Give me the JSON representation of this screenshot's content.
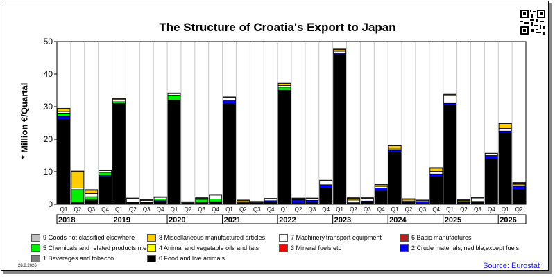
{
  "chart_data": {
    "type": "bar",
    "stacked": true,
    "title": "The Structure of Croatia's Export to Japan",
    "ylabel": "* Million €/Quartal",
    "ylim": [
      0,
      50
    ],
    "yticks": [
      0,
      10,
      20,
      30,
      40,
      50
    ],
    "categories": [
      "Q1",
      "Q2",
      "Q3",
      "Q4",
      "Q1",
      "Q2",
      "Q3",
      "Q4",
      "Q1",
      "Q2",
      "Q3",
      "Q4",
      "Q1",
      "Q2",
      "Q3",
      "Q4",
      "Q1",
      "Q2",
      "Q3",
      "Q4",
      "Q1",
      "Q2",
      "Q3",
      "Q4",
      "Q1",
      "Q2",
      "Q3",
      "Q4",
      "Q1",
      "Q2",
      "Q3",
      "Q4",
      "Q1",
      "Q2"
    ],
    "years": [
      "2018",
      "2019",
      "2020",
      "2021",
      "2022",
      "2023",
      "2024",
      "2025",
      "2026"
    ],
    "series": [
      {
        "name": "0 Food and live animals",
        "color": "#000000",
        "values": [
          26,
          0.5,
          1,
          8.5,
          31,
          0.6,
          0.6,
          0.8,
          32,
          0.3,
          0.4,
          0.6,
          31,
          0.3,
          0.4,
          0.6,
          35,
          0.4,
          0.5,
          5,
          46,
          0.4,
          0.6,
          4,
          16,
          0.5,
          0.3,
          8.5,
          30.5,
          0.4,
          0.6,
          14,
          22,
          4.5
        ]
      },
      {
        "name": "1 Beverages and tobacco",
        "color": "#808080",
        "values": [
          0,
          0,
          0,
          0,
          0,
          0,
          0,
          0,
          0,
          0,
          0,
          0,
          0,
          0,
          0,
          0,
          0,
          0,
          0,
          0,
          0,
          0,
          0,
          0,
          0,
          0,
          0,
          0,
          0,
          0,
          0,
          0,
          0,
          0
        ]
      },
      {
        "name": "2 Crude materials,inedible,except fuels",
        "color": "#0000ff",
        "values": [
          1,
          0,
          0.3,
          0.3,
          0,
          0.1,
          0.1,
          0.3,
          0,
          0.1,
          0.1,
          0.2,
          0.8,
          0.1,
          0.1,
          0.5,
          0,
          1,
          0.7,
          1,
          0.5,
          0.1,
          0.4,
          1,
          0.5,
          0.2,
          0.5,
          0.8,
          0.5,
          0.2,
          0.3,
          1,
          0.5,
          1
        ]
      },
      {
        "name": "3 Mineral fuels etc",
        "color": "#ff0000",
        "values": [
          0,
          0,
          0,
          0,
          0,
          0,
          0,
          0,
          0,
          0,
          0,
          0,
          0,
          0,
          0,
          0,
          0,
          0,
          0,
          0,
          0,
          0,
          0,
          0,
          0,
          0,
          0,
          0,
          0,
          0,
          0,
          0,
          0,
          0
        ]
      },
      {
        "name": "4 Animal and vegetable oils and fats",
        "color": "#ffff00",
        "values": [
          0,
          0,
          0,
          0,
          0,
          0,
          0,
          0,
          0,
          0,
          0,
          0,
          0,
          0,
          0,
          0,
          0,
          0,
          0,
          0,
          0,
          0,
          0,
          0,
          0,
          0,
          0,
          0,
          0,
          0,
          0,
          0,
          0,
          0
        ]
      },
      {
        "name": "5 Chemicals and related products,n.e.s.",
        "color": "#00ee00",
        "values": [
          1,
          4,
          1,
          1,
          0.5,
          0,
          0,
          0.5,
          1.5,
          0,
          1,
          0.8,
          0,
          0,
          0,
          0,
          1,
          0,
          0,
          0,
          0,
          0,
          0,
          0,
          0,
          0,
          0,
          0,
          0,
          0,
          0,
          0,
          0,
          0
        ]
      },
      {
        "name": "6 Basic manufactures",
        "color": "#b22222",
        "values": [
          0,
          0,
          0,
          0,
          0,
          0,
          0,
          0,
          0,
          0,
          0,
          0,
          0,
          0,
          0,
          0,
          0,
          0,
          0,
          0,
          0,
          0,
          0,
          0,
          0,
          0,
          0,
          0,
          0,
          0,
          0,
          0,
          0,
          0
        ]
      },
      {
        "name": "7 Machinery,transport equipment",
        "color": "#ffffff",
        "values": [
          0.5,
          0.5,
          1,
          0.5,
          0.5,
          1,
          0.5,
          0.5,
          0.5,
          0.2,
          0.3,
          1.2,
          1,
          0.2,
          0.2,
          0.5,
          0.5,
          0.3,
          0.5,
          1.2,
          0.5,
          0.8,
          0.8,
          0.5,
          0.5,
          0.3,
          0.3,
          0.8,
          2.3,
          0.3,
          1,
          0.5,
          0.8,
          0.5
        ]
      },
      {
        "name": "8 Miscellaneous manufactured articles",
        "color": "#ffcc00",
        "values": [
          0.8,
          5,
          1,
          0,
          0.3,
          0,
          0,
          0,
          0,
          0,
          0,
          0,
          0,
          0.5,
          0,
          0,
          0.5,
          0,
          0,
          0,
          0.5,
          0.5,
          0,
          0.5,
          1,
          0.5,
          0,
          1,
          0.3,
          0.3,
          0,
          0,
          1.5,
          0.5
        ]
      },
      {
        "name": "9 Goods not classified elsewhere",
        "color": "#c0c0c0",
        "values": [
          0.2,
          0.2,
          0.2,
          0.2,
          0.2,
          0.2,
          0.2,
          0.2,
          0.2,
          0.2,
          0.2,
          0.2,
          0.2,
          0.2,
          0.2,
          0.2,
          0.2,
          0.2,
          0.2,
          0.2,
          0.2,
          0.2,
          0.2,
          0.2,
          0.2,
          0.2,
          0.2,
          0.2,
          0.2,
          0.2,
          0.2,
          0.2,
          0.2,
          0.2
        ]
      }
    ]
  },
  "footer": {
    "date": "28.8.2026",
    "source": "Source: Eurostat"
  }
}
